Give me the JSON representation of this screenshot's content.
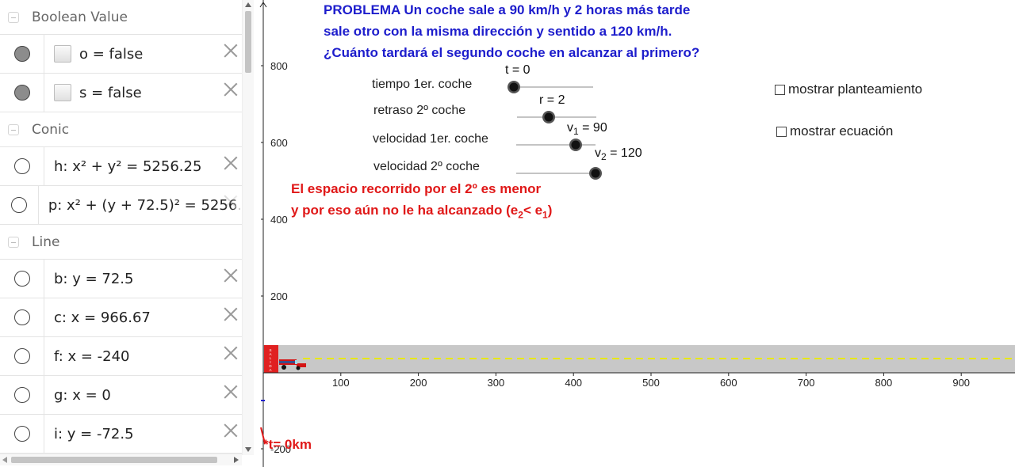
{
  "algebra": {
    "categories": [
      {
        "title": "Boolean Value",
        "items": [
          {
            "expr": "o = false",
            "marker": "filled",
            "checkbox": true
          },
          {
            "expr": "s = false",
            "marker": "filled",
            "checkbox": true
          }
        ]
      },
      {
        "title": "Conic",
        "items": [
          {
            "expr": "h: x² + y² = 5256.25",
            "marker": "empty"
          },
          {
            "expr": "p: x² + (y + 72.5)² = 5256.",
            "marker": "empty"
          }
        ]
      },
      {
        "title": "Line",
        "items": [
          {
            "expr": "b: y = 72.5",
            "marker": "empty"
          },
          {
            "expr": "c: x = 966.67",
            "marker": "empty"
          },
          {
            "expr": "f: x = -240",
            "marker": "empty"
          },
          {
            "expr": "g: x = 0",
            "marker": "empty"
          },
          {
            "expr": "i: y = -72.5",
            "marker": "empty"
          }
        ]
      }
    ]
  },
  "problem": {
    "line1": "PROBLEMA   Un coche sale a 90 km/h y 2 horas más tarde",
    "line2": "sale otro con la misma dirección y sentido a 120 km/h.",
    "line3": "¿Cuánto tardará el segundo coche en alcanzar al primero?"
  },
  "sliders": {
    "t": {
      "label": "tiempo 1er. coche",
      "value": "t = 0"
    },
    "r": {
      "label": "retraso 2º coche",
      "value": "r = 2"
    },
    "v1": {
      "label": "velocidad 1er. coche",
      "name": "v",
      "sub": "1",
      "value": " = 90"
    },
    "v2": {
      "label": "velocidad 2º coche",
      "name": "v",
      "sub": "2",
      "value": " = 120"
    }
  },
  "message": {
    "line1": "El espacio recorrido por el 2º es menor",
    "line2_pre": "y por eso aún no le ha alcanzado (e",
    "line2_sub1": "2",
    "line2_mid": "< e",
    "line2_sub2": "1",
    "line2_post": ")"
  },
  "options": {
    "show_setup": "mostrar planteamiento",
    "show_equation": "mostrar ecuación"
  },
  "bottom_label": "*t= 0km",
  "axes": {
    "x_ticks": [
      "100",
      "200",
      "300",
      "400",
      "500",
      "600",
      "700",
      "800",
      "900"
    ],
    "y_ticks": [
      "800",
      "600",
      "400",
      "200",
      "-200"
    ]
  },
  "road": {
    "start_sign": "SALIDA"
  },
  "colors": {
    "problem_text": "#1d1dcc",
    "message_text": "#e01818",
    "road": "#c8c8c8",
    "lane": "#e8e800",
    "car": "#d41414"
  }
}
